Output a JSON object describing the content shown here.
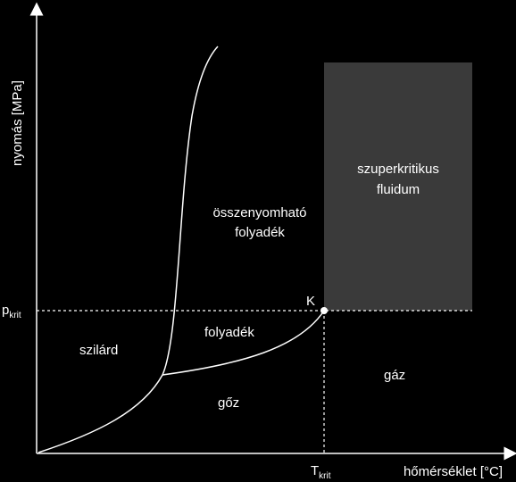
{
  "diagram": {
    "y_axis_label": "nyomás [MPa]",
    "x_axis_label": "hőmérséklet [°C]",
    "p_label_main": "p",
    "p_label_sub": "krit",
    "t_label_main": "T",
    "t_label_sub": "krit",
    "critical_point_label": "K",
    "regions": {
      "solid": "szilárd",
      "liquid": "folyadék",
      "vapor": "gőz",
      "gas": "gáz",
      "compressible_liquid_line1": "összenyomható",
      "compressible_liquid_line2": "folyadék",
      "supercritical_line1": "szuperkritikus",
      "supercritical_line2": "fluidum"
    },
    "colors": {
      "background": "#000000",
      "foreground": "#ffffff",
      "supercritical_fill": "#3a3a3a"
    }
  }
}
